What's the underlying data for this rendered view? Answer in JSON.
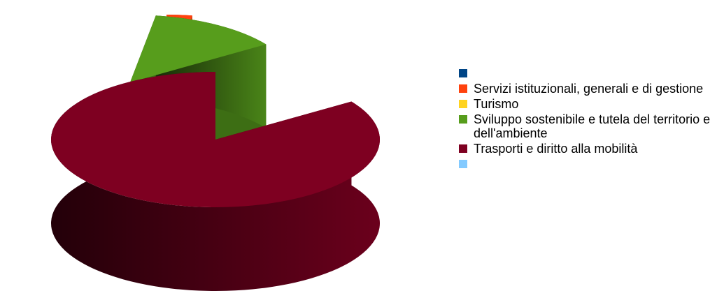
{
  "chart_data": {
    "type": "pie",
    "style": "3d-exploded",
    "title": "",
    "legend_position": "right",
    "slices": [
      {
        "label": "",
        "value": 0,
        "color": "#004586"
      },
      {
        "label": "Servizi istituzionali, generali e di gestione",
        "value": 2.5,
        "color": "#ff420e"
      },
      {
        "label": "Turismo",
        "value": 0,
        "color": "#ffd320"
      },
      {
        "label": "Sviluppo sostenibile e tutela del territorio e dell'ambiente",
        "value": 13,
        "color": "#579d1c"
      },
      {
        "label": "Trasporti e diritto alla mobilità",
        "value": 84.5,
        "color": "#7e0021"
      },
      {
        "label": "",
        "value": 0,
        "color": "#83caff"
      }
    ]
  }
}
